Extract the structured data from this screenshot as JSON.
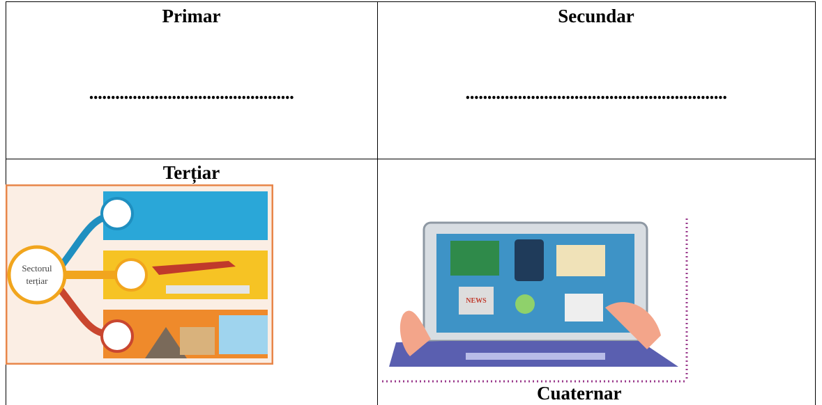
{
  "table": {
    "rows": [
      [
        {
          "title": "Primar",
          "answer": "..............................................."
        },
        {
          "title": "Secundar",
          "answer": "............................................................"
        }
      ],
      [
        {
          "title": "Terțiar",
          "image_label": [
            "Sectorul",
            "terțiar"
          ]
        },
        {
          "title": "Cuaternar",
          "image_label": [
            "NEWS"
          ]
        }
      ]
    ]
  }
}
